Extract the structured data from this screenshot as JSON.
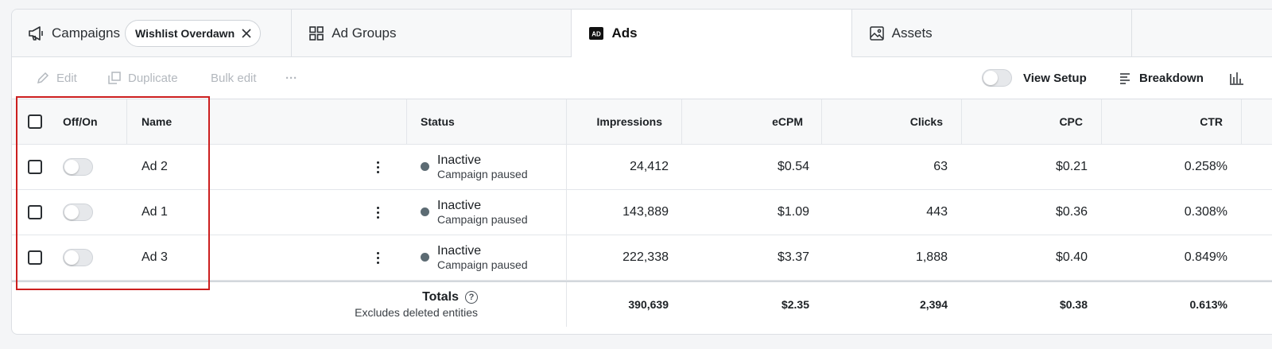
{
  "tabs": [
    {
      "label": "Campaigns",
      "icon": "megaphone-icon",
      "chip": "Wishlist Overdawn"
    },
    {
      "label": "Ad Groups",
      "icon": "grid-icon"
    },
    {
      "label": "Ads",
      "icon": "ad-badge-icon",
      "badge": "AD"
    },
    {
      "label": "Assets",
      "icon": "image-icon"
    }
  ],
  "toolbar": {
    "edit": "Edit",
    "duplicate": "Duplicate",
    "bulk_edit": "Bulk edit",
    "more": "···",
    "view_setup": "View Setup",
    "breakdown": "Breakdown"
  },
  "table": {
    "columns": {
      "offon": "Off/On",
      "name": "Name",
      "status": "Status",
      "impressions": "Impressions",
      "ecpm": "eCPM",
      "clicks": "Clicks",
      "cpc": "CPC",
      "ctr": "CTR"
    },
    "rows": [
      {
        "name": "Ad 2",
        "status": "Inactive",
        "status_sub": "Campaign paused",
        "impressions": "24,412",
        "ecpm": "$0.54",
        "clicks": "63",
        "cpc": "$0.21",
        "ctr": "0.258%"
      },
      {
        "name": "Ad 1",
        "status": "Inactive",
        "status_sub": "Campaign paused",
        "impressions": "143,889",
        "ecpm": "$1.09",
        "clicks": "443",
        "cpc": "$0.36",
        "ctr": "0.308%"
      },
      {
        "name": "Ad 3",
        "status": "Inactive",
        "status_sub": "Campaign paused",
        "impressions": "222,338",
        "ecpm": "$3.37",
        "clicks": "1,888",
        "cpc": "$0.40",
        "ctr": "0.849%"
      }
    ],
    "totals": {
      "label": "Totals",
      "help": "?",
      "sub": "Excludes deleted entities",
      "impressions": "390,639",
      "ecpm": "$2.35",
      "clicks": "2,394",
      "cpc": "$0.38",
      "ctr": "0.613%"
    }
  },
  "colors": {
    "highlight": "#cc1f1f",
    "status_dot": "#5c6b73"
  }
}
